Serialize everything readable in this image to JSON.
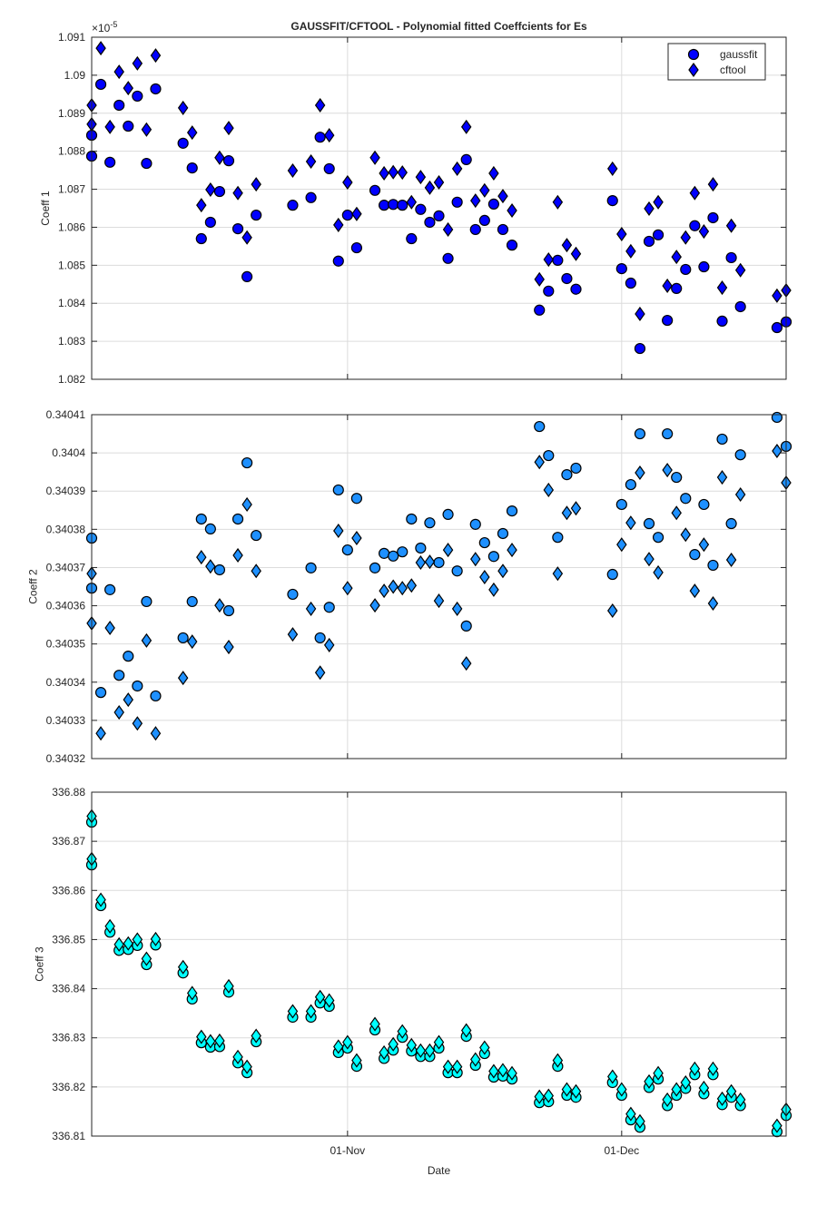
{
  "chart_data": [
    {
      "type": "scatter",
      "title": "GAUSSFIT/CFTOOL - Polynomial fitted Coeffcients for Es",
      "ylabel": "Coeff 1",
      "exponent": {
        "base": "×10",
        "power": "-5"
      },
      "legend": "top-right",
      "grid": true,
      "x": [
        "04-Oct",
        "04-Oct",
        "05-Oct",
        "06-Oct",
        "07-Oct",
        "08-Oct",
        "09-Oct",
        "10-Oct",
        "11-Oct",
        "14-Oct",
        "15-Oct",
        "16-Oct",
        "17-Oct",
        "18-Oct",
        "19-Oct",
        "20-Oct",
        "21-Oct",
        "22-Oct",
        "26-Oct",
        "28-Oct",
        "29-Oct",
        "30-Oct",
        "31-Oct",
        "01-Nov",
        "02-Nov",
        "04-Nov",
        "05-Nov",
        "06-Nov",
        "07-Nov",
        "08-Nov",
        "09-Nov",
        "10-Nov",
        "11-Nov",
        "12-Nov",
        "13-Nov",
        "14-Nov",
        "15-Nov",
        "16-Nov",
        "17-Nov",
        "18-Nov",
        "19-Nov",
        "22-Nov",
        "23-Nov",
        "24-Nov",
        "25-Nov",
        "26-Nov",
        "30-Nov",
        "01-Dec",
        "02-Dec",
        "03-Dec",
        "04-Dec",
        "05-Dec",
        "06-Dec",
        "07-Dec",
        "08-Dec",
        "09-Dec",
        "10-Dec",
        "11-Dec",
        "12-Dec",
        "13-Dec",
        "14-Dec",
        "18-Dec",
        "19-Dec"
      ],
      "xlim": [
        "04-Oct",
        "19-Dec"
      ],
      "ylim": [
        1.082,
        1.091
      ],
      "yticks": [
        1.082,
        1.083,
        1.084,
        1.085,
        1.086,
        1.087,
        1.088,
        1.089,
        1.09,
        1.091
      ],
      "series": [
        {
          "name": "gaussfit",
          "marker": "circle",
          "color": "#0000ff",
          "values": [
            1.08787,
            1.08842,
            1.08976,
            1.08771,
            1.08921,
            1.08866,
            1.08945,
            1.08768,
            1.08964,
            1.08821,
            1.08756,
            1.0857,
            1.08613,
            1.08694,
            1.08775,
            1.08596,
            1.0847,
            1.08632,
            1.08658,
            1.08678,
            1.08837,
            1.08754,
            1.08511,
            1.08632,
            1.08546,
            1.08697,
            1.08658,
            1.0866,
            1.08658,
            1.0857,
            1.08647,
            1.08613,
            1.0863,
            1.08518,
            1.08666,
            1.08778,
            1.08594,
            1.08618,
            1.08661,
            1.08594,
            1.08553,
            1.08382,
            1.08432,
            1.08513,
            1.08465,
            1.08437,
            1.0867,
            1.08491,
            1.08453,
            1.08281,
            1.08563,
            1.0858,
            1.08355,
            1.08439,
            1.08489,
            1.08604,
            1.08496,
            1.08625,
            1.08353,
            1.0852,
            1.08391,
            1.08336,
            1.08351
          ]
        },
        {
          "name": "cftool",
          "marker": "diamond",
          "color": "#0000ff",
          "values": [
            1.08921,
            1.08871,
            1.09071,
            1.08864,
            1.09009,
            1.08966,
            1.09031,
            1.08857,
            1.09052,
            1.08914,
            1.08849,
            1.08658,
            1.08699,
            1.08783,
            1.08861,
            1.0869,
            1.08573,
            1.08713,
            1.08749,
            1.08773,
            1.08921,
            1.08842,
            1.08606,
            1.08718,
            1.08635,
            1.08783,
            1.08742,
            1.08745,
            1.08744,
            1.08666,
            1.08732,
            1.08704,
            1.08718,
            1.08594,
            1.08754,
            1.08864,
            1.0867,
            1.08697,
            1.08742,
            1.08682,
            1.08644,
            1.08463,
            1.08515,
            1.08666,
            1.08553,
            1.0853,
            1.08754,
            1.08582,
            1.08537,
            1.08372,
            1.08649,
            1.08666,
            1.08446,
            1.08522,
            1.08573,
            1.0869,
            1.08589,
            1.08713,
            1.08441,
            1.08604,
            1.08487,
            1.0842,
            1.08434
          ]
        }
      ]
    },
    {
      "type": "scatter",
      "ylabel": "Coeff 2",
      "grid": true,
      "x": [
        "04-Oct",
        "04-Oct",
        "05-Oct",
        "06-Oct",
        "07-Oct",
        "08-Oct",
        "09-Oct",
        "10-Oct",
        "11-Oct",
        "14-Oct",
        "15-Oct",
        "16-Oct",
        "17-Oct",
        "18-Oct",
        "19-Oct",
        "20-Oct",
        "21-Oct",
        "22-Oct",
        "26-Oct",
        "28-Oct",
        "29-Oct",
        "30-Oct",
        "31-Oct",
        "01-Nov",
        "02-Nov",
        "04-Nov",
        "05-Nov",
        "06-Nov",
        "07-Nov",
        "08-Nov",
        "09-Nov",
        "10-Nov",
        "11-Nov",
        "12-Nov",
        "13-Nov",
        "14-Nov",
        "15-Nov",
        "16-Nov",
        "17-Nov",
        "18-Nov",
        "19-Nov",
        "22-Nov",
        "23-Nov",
        "24-Nov",
        "25-Nov",
        "26-Nov",
        "30-Nov",
        "01-Dec",
        "02-Dec",
        "03-Dec",
        "04-Dec",
        "05-Dec",
        "06-Dec",
        "07-Dec",
        "08-Dec",
        "09-Dec",
        "10-Dec",
        "11-Dec",
        "12-Dec",
        "13-Dec",
        "14-Dec",
        "18-Dec",
        "19-Dec"
      ],
      "xlim": [
        "04-Oct",
        "19-Dec"
      ],
      "ylim": [
        0.34032,
        0.34041
      ],
      "yticks": [
        0.34032,
        0.34033,
        0.34034,
        0.34035,
        0.34036,
        0.34037,
        0.34038,
        0.34039,
        0.3404,
        0.34041
      ],
      "series": [
        {
          "name": "gaussfit",
          "marker": "circle",
          "color": "#1e90ff",
          "values": [
            0.3403646,
            0.3403777,
            0.3403373,
            0.3403642,
            0.3403418,
            0.3403468,
            0.340339,
            0.3403611,
            0.3403364,
            0.3403516,
            0.3403611,
            0.3403827,
            0.3403801,
            0.3403694,
            0.3403587,
            0.3403827,
            0.3403974,
            0.3403784,
            0.340363,
            0.3403699,
            0.3403516,
            0.3403596,
            0.3403903,
            0.3403746,
            0.3403881,
            0.3403699,
            0.3403737,
            0.340373,
            0.3403741,
            0.3403827,
            0.3403751,
            0.3403817,
            0.3403713,
            0.3403839,
            0.3403691,
            0.3403547,
            0.3403813,
            0.3403765,
            0.3403729,
            0.3403789,
            0.3403848,
            0.3404069,
            0.3403993,
            0.3403779,
            0.3403943,
            0.340396,
            0.3403682,
            0.3403865,
            0.3403917,
            0.340405,
            0.3403815,
            0.3403779,
            0.340405,
            0.3403936,
            0.3403881,
            0.3403734,
            0.3403865,
            0.3403706,
            0.3404036,
            0.3403815,
            0.3403995,
            0.3404093,
            0.3404017
          ]
        },
        {
          "name": "cftool",
          "marker": "diamond",
          "color": "#1e90ff",
          "values": [
            0.3403684,
            0.3403554,
            0.3403266,
            0.3403542,
            0.3403321,
            0.3403354,
            0.3403292,
            0.3403509,
            0.3403266,
            0.3403411,
            0.3403506,
            0.3403727,
            0.3403703,
            0.3403601,
            0.3403492,
            0.3403732,
            0.3403865,
            0.3403691,
            0.3403525,
            0.3403592,
            0.3403425,
            0.3403497,
            0.3403796,
            0.3403646,
            0.3403777,
            0.3403601,
            0.3403639,
            0.340365,
            0.3403646,
            0.3403653,
            0.3403713,
            0.3403715,
            0.3403613,
            0.3403746,
            0.3403592,
            0.3403449,
            0.3403722,
            0.3403675,
            0.3403642,
            0.3403691,
            0.3403746,
            0.3403976,
            0.3403903,
            0.3403684,
            0.3403843,
            0.3403855,
            0.3403587,
            0.340376,
            0.3403817,
            0.3403948,
            0.3403722,
            0.3403687,
            0.3403955,
            0.3403843,
            0.3403786,
            0.3403639,
            0.340376,
            0.3403606,
            0.3403936,
            0.340372,
            0.3403891,
            0.3404005,
            0.3403922
          ]
        }
      ]
    },
    {
      "type": "scatter",
      "ylabel": "Coeff 3",
      "xlabel": "Date",
      "grid": true,
      "x": [
        "04-Oct",
        "04-Oct",
        "05-Oct",
        "06-Oct",
        "07-Oct",
        "08-Oct",
        "09-Oct",
        "10-Oct",
        "11-Oct",
        "14-Oct",
        "15-Oct",
        "16-Oct",
        "17-Oct",
        "18-Oct",
        "19-Oct",
        "20-Oct",
        "21-Oct",
        "22-Oct",
        "26-Oct",
        "28-Oct",
        "29-Oct",
        "30-Oct",
        "31-Oct",
        "01-Nov",
        "02-Nov",
        "04-Nov",
        "05-Nov",
        "06-Nov",
        "07-Nov",
        "08-Nov",
        "09-Nov",
        "10-Nov",
        "11-Nov",
        "12-Nov",
        "13-Nov",
        "14-Nov",
        "15-Nov",
        "16-Nov",
        "17-Nov",
        "18-Nov",
        "19-Nov",
        "22-Nov",
        "23-Nov",
        "24-Nov",
        "25-Nov",
        "26-Nov",
        "30-Nov",
        "01-Dec",
        "02-Dec",
        "03-Dec",
        "04-Dec",
        "05-Dec",
        "06-Dec",
        "07-Dec",
        "08-Dec",
        "09-Dec",
        "10-Dec",
        "11-Dec",
        "12-Dec",
        "13-Dec",
        "14-Dec",
        "18-Dec",
        "19-Dec"
      ],
      "xlim": [
        "04-Oct",
        "19-Dec"
      ],
      "xticks": [
        "01-Nov",
        "01-Dec"
      ],
      "ylim": [
        336.81,
        336.88
      ],
      "yticks": [
        336.81,
        336.82,
        336.83,
        336.84,
        336.85,
        336.86,
        336.87,
        336.88
      ],
      "series": [
        {
          "name": "gaussfit",
          "marker": "circle",
          "color": "#00ffff",
          "values": [
            336.8739,
            336.8652,
            336.8569,
            336.8515,
            336.8478,
            336.848,
            336.8488,
            336.8449,
            336.8489,
            336.8432,
            336.8379,
            336.829,
            336.8281,
            336.8282,
            336.8393,
            336.8249,
            336.8229,
            336.8292,
            336.8342,
            336.8342,
            336.8371,
            336.8364,
            336.827,
            336.8279,
            336.8242,
            336.8316,
            336.8258,
            336.8275,
            336.8301,
            336.8273,
            336.8262,
            336.8262,
            336.8279,
            336.8229,
            336.8229,
            336.8303,
            336.8244,
            336.8268,
            336.822,
            336.8222,
            336.8216,
            336.8168,
            336.817,
            336.8242,
            336.8183,
            336.8179,
            336.8209,
            336.8183,
            336.8133,
            336.8118,
            336.8199,
            336.8216,
            336.8162,
            336.8183,
            336.8197,
            336.8225,
            336.8186,
            336.8225,
            336.8164,
            336.8179,
            336.8162,
            336.8109,
            336.8142
          ]
        },
        {
          "name": "cftool",
          "marker": "diamond",
          "color": "#00ffff",
          "values": [
            336.8751,
            336.8664,
            336.8581,
            336.8527,
            336.849,
            336.8492,
            336.85,
            336.8461,
            336.8501,
            336.8444,
            336.8391,
            336.8302,
            336.8293,
            336.8294,
            336.8405,
            336.8261,
            336.8241,
            336.8304,
            336.8354,
            336.8354,
            336.8383,
            336.8376,
            336.8282,
            336.8291,
            336.8254,
            336.8328,
            336.827,
            336.8287,
            336.8313,
            336.8285,
            336.8274,
            336.8274,
            336.8291,
            336.8241,
            336.8241,
            336.8315,
            336.8256,
            336.828,
            336.8232,
            336.8234,
            336.8228,
            336.818,
            336.8182,
            336.8254,
            336.8195,
            336.8191,
            336.8221,
            336.8195,
            336.8145,
            336.813,
            336.8211,
            336.8228,
            336.8174,
            336.8195,
            336.8209,
            336.8237,
            336.8198,
            336.8237,
            336.8176,
            336.8191,
            336.8174,
            336.8121,
            336.8154
          ]
        }
      ]
    }
  ]
}
